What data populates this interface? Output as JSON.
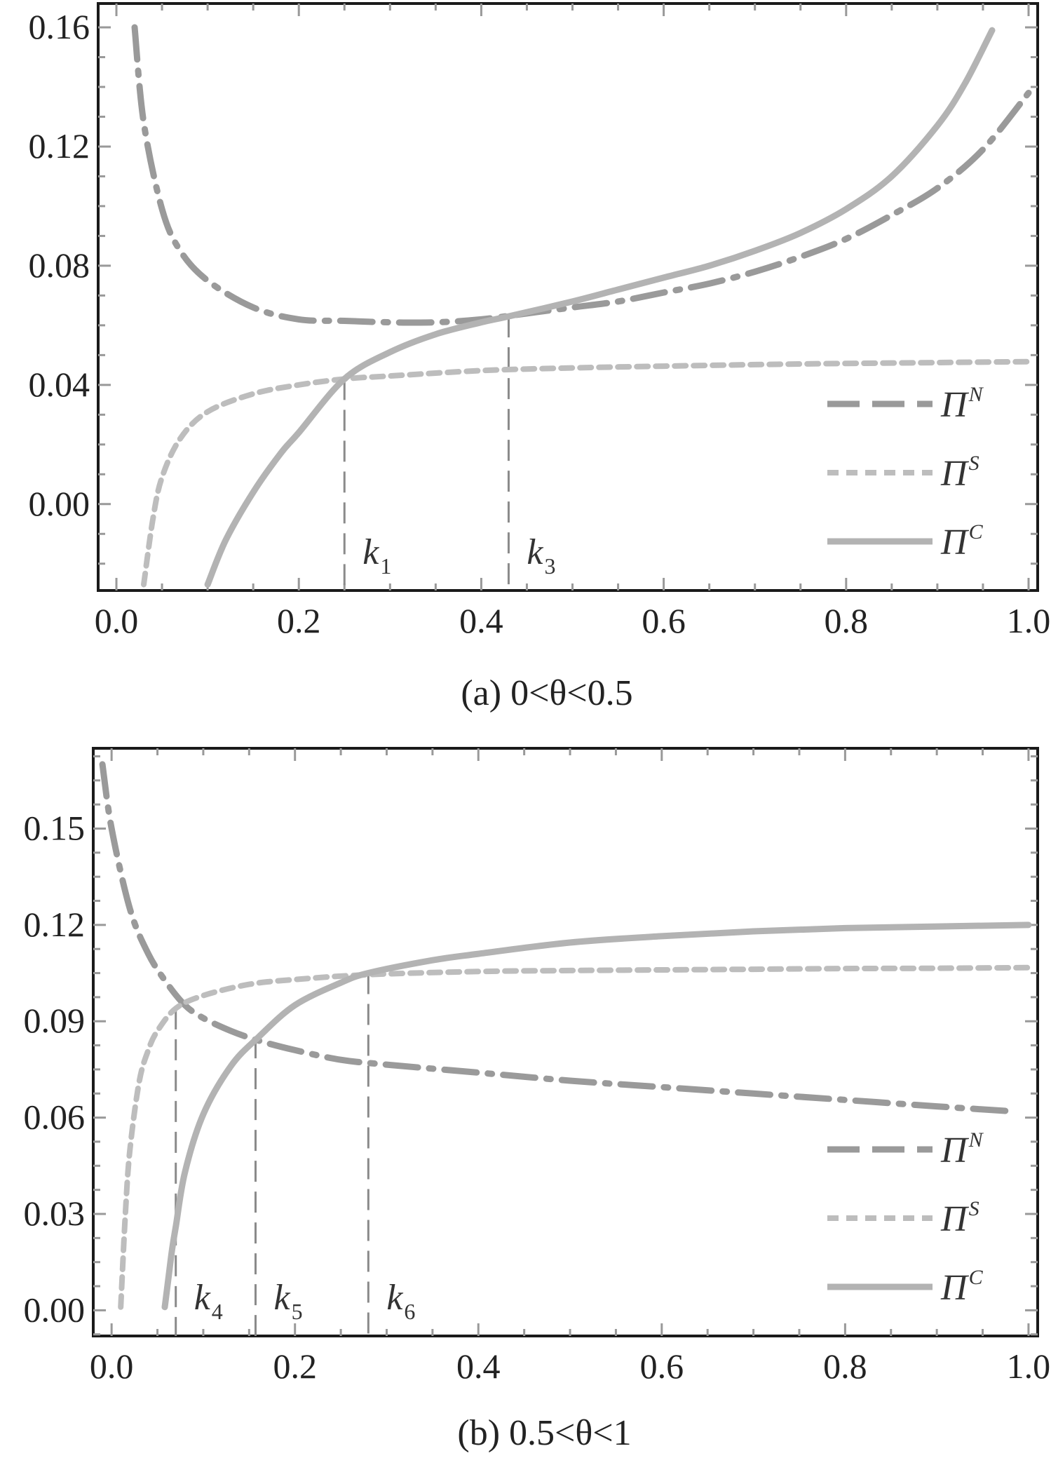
{
  "colors": {
    "pi_n": "#9a9a9a",
    "pi_s": "#bdbdbd",
    "pi_c": "#b3b3b3",
    "frame": "#1a1a1a",
    "marker": "#8a8a8a"
  },
  "chart_data": [
    {
      "type": "line",
      "caption": "(a) 0<θ<0.5",
      "xlim": [
        -0.02,
        1.01
      ],
      "ylim": [
        -0.029,
        0.168
      ],
      "x_ticks": [
        "0.0",
        "0.2",
        "0.4",
        "0.6",
        "0.8",
        "1.0"
      ],
      "x_tick_values": [
        0.0,
        0.2,
        0.4,
        0.6,
        0.8,
        1.0
      ],
      "y_ticks": [
        "0.00",
        "0.04",
        "0.08",
        "0.12",
        "0.16"
      ],
      "y_tick_values": [
        0.0,
        0.04,
        0.08,
        0.12,
        0.16
      ],
      "grid": false,
      "legend": "bottom-right",
      "series": [
        {
          "key": "pi_n",
          "name": "Π",
          "sup": "N",
          "style": "dashdot",
          "x": [
            0.02,
            0.03,
            0.05,
            0.07,
            0.1,
            0.15,
            0.2,
            0.25,
            0.3,
            0.35,
            0.4,
            0.45,
            0.5,
            0.55,
            0.6,
            0.65,
            0.7,
            0.75,
            0.8,
            0.85,
            0.9,
            0.95,
            1.0
          ],
          "y": [
            0.16,
            0.128,
            0.099,
            0.085,
            0.075,
            0.066,
            0.062,
            0.0615,
            0.061,
            0.061,
            0.062,
            0.064,
            0.066,
            0.068,
            0.071,
            0.074,
            0.078,
            0.083,
            0.089,
            0.097,
            0.106,
            0.119,
            0.138
          ]
        },
        {
          "key": "pi_s",
          "name": "Π",
          "sup": "S",
          "style": "dotted",
          "x": [
            0.03,
            0.04,
            0.05,
            0.07,
            0.1,
            0.15,
            0.2,
            0.25,
            0.3,
            0.4,
            0.5,
            0.6,
            0.7,
            0.8,
            0.9,
            1.0
          ],
          "y": [
            -0.027,
            -0.005,
            0.009,
            0.022,
            0.031,
            0.037,
            0.04,
            0.042,
            0.043,
            0.0448,
            0.0457,
            0.0463,
            0.0468,
            0.0472,
            0.0475,
            0.0478
          ]
        },
        {
          "key": "pi_c",
          "name": "Π",
          "sup": "C",
          "style": "solid",
          "x": [
            0.1,
            0.12,
            0.15,
            0.18,
            0.2,
            0.25,
            0.3,
            0.35,
            0.4,
            0.43,
            0.5,
            0.55,
            0.6,
            0.65,
            0.7,
            0.75,
            0.8,
            0.85,
            0.9,
            0.93,
            0.96
          ],
          "y": [
            -0.027,
            -0.012,
            0.004,
            0.017,
            0.024,
            0.042,
            0.051,
            0.057,
            0.061,
            0.063,
            0.068,
            0.072,
            0.076,
            0.08,
            0.085,
            0.091,
            0.099,
            0.11,
            0.127,
            0.141,
            0.159
          ]
        }
      ],
      "markers": [
        {
          "x": 0.25,
          "y": 0.042,
          "label": "k",
          "sub": "1"
        },
        {
          "x": 0.43,
          "y": 0.063,
          "label": "k",
          "sub": "3"
        }
      ]
    },
    {
      "type": "line",
      "caption": "(b) 0.5<θ<1",
      "xlim": [
        -0.02,
        1.01
      ],
      "ylim": [
        -0.008,
        0.175
      ],
      "x_ticks": [
        "0.0",
        "0.2",
        "0.4",
        "0.6",
        "0.8",
        "1.0"
      ],
      "x_tick_values": [
        0.0,
        0.2,
        0.4,
        0.6,
        0.8,
        1.0
      ],
      "y_ticks": [
        "0.00",
        "0.03",
        "0.06",
        "0.09",
        "0.12",
        "0.15"
      ],
      "y_tick_values": [
        0.0,
        0.03,
        0.06,
        0.09,
        0.12,
        0.15
      ],
      "grid": false,
      "legend": "bottom-right",
      "series": [
        {
          "key": "pi_n",
          "name": "Π",
          "sup": "N",
          "style": "dashdot",
          "x": [
            -0.01,
            0.0,
            0.02,
            0.04,
            0.06,
            0.08,
            0.1,
            0.13,
            0.16,
            0.2,
            0.25,
            0.3,
            0.4,
            0.5,
            0.6,
            0.7,
            0.8,
            0.9,
            0.98
          ],
          "y": [
            0.17,
            0.15,
            0.125,
            0.111,
            0.102,
            0.095,
            0.091,
            0.087,
            0.084,
            0.081,
            0.078,
            0.0765,
            0.074,
            0.0715,
            0.0695,
            0.0675,
            0.0655,
            0.0635,
            0.062
          ]
        },
        {
          "key": "pi_s",
          "name": "Π",
          "sup": "S",
          "style": "dotted",
          "x": [
            0.01,
            0.015,
            0.02,
            0.03,
            0.04,
            0.05,
            0.07,
            0.1,
            0.15,
            0.2,
            0.28,
            0.4,
            0.5,
            0.6,
            0.7,
            0.8,
            0.9,
            1.0
          ],
          "y": [
            0.001,
            0.03,
            0.05,
            0.071,
            0.081,
            0.087,
            0.094,
            0.098,
            0.1015,
            0.103,
            0.1045,
            0.1055,
            0.1058,
            0.106,
            0.1062,
            0.1064,
            0.1065,
            0.1067
          ]
        },
        {
          "key": "pi_c",
          "name": "Π",
          "sup": "C",
          "style": "solid",
          "x": [
            0.058,
            0.062,
            0.066,
            0.07,
            0.08,
            0.1,
            0.13,
            0.16,
            0.2,
            0.25,
            0.28,
            0.35,
            0.4,
            0.5,
            0.6,
            0.7,
            0.8,
            0.9,
            1.0
          ],
          "y": [
            0.001,
            0.01,
            0.019,
            0.026,
            0.043,
            0.061,
            0.076,
            0.085,
            0.095,
            0.102,
            0.105,
            0.109,
            0.111,
            0.1145,
            0.1165,
            0.118,
            0.119,
            0.1195,
            0.12
          ]
        }
      ],
      "markers": [
        {
          "x": 0.07,
          "y": 0.094,
          "label": "k",
          "sub": "4"
        },
        {
          "x": 0.157,
          "y": 0.085,
          "label": "k",
          "sub": "5"
        },
        {
          "x": 0.28,
          "y": 0.105,
          "label": "k",
          "sub": "6"
        }
      ]
    }
  ]
}
